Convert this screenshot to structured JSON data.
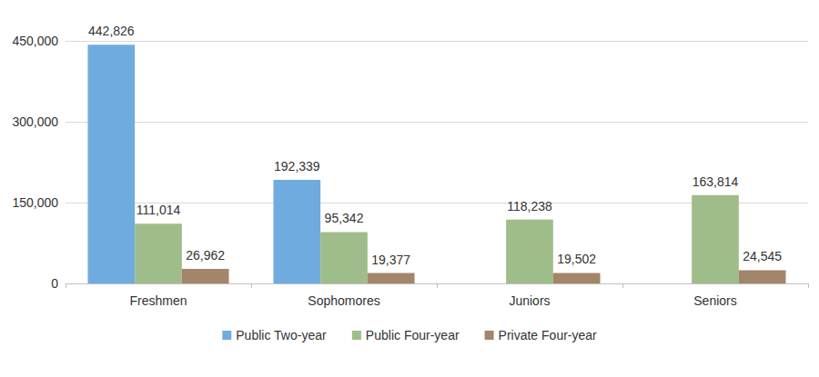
{
  "chart_data": {
    "type": "bar",
    "categories": [
      "Freshmen",
      "Sophomores",
      "Juniors",
      "Seniors"
    ],
    "series": [
      {
        "name": "Public Two-year",
        "color": "#6fabde",
        "values": [
          442826,
          192339,
          null,
          null
        ],
        "value_labels": [
          "442,826",
          "192,339",
          null,
          null
        ]
      },
      {
        "name": "Public Four-year",
        "color": "#9fbd8a",
        "values": [
          111014,
          95342,
          118238,
          163814
        ],
        "value_labels": [
          "111,014",
          "95,342",
          "118,238",
          "163,814"
        ]
      },
      {
        "name": "Private Four-year",
        "color": "#a38569",
        "values": [
          26962,
          19377,
          19502,
          24545
        ],
        "value_labels": [
          "26,962",
          "19,377",
          "19,502",
          "24,545"
        ]
      }
    ],
    "ylim": [
      0,
      450000
    ],
    "yticks": [
      0,
      {
        "value": 150000,
        "label": "150,000"
      },
      {
        "value": 300000,
        "label": "300,000"
      },
      {
        "value": 450000,
        "label": "450,000"
      }
    ],
    "grid": true,
    "legend": "bottom",
    "data_labels": true
  }
}
